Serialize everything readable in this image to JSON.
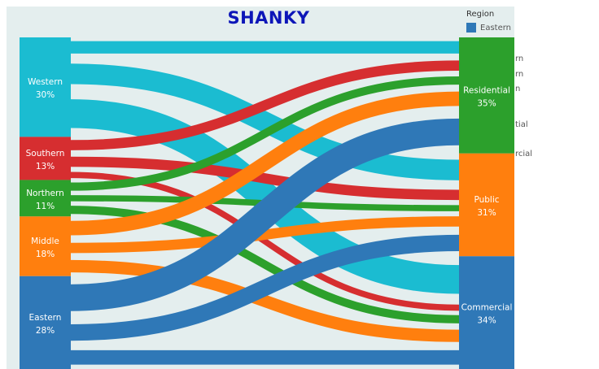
{
  "header": {
    "title": "SHANKY"
  },
  "legend": {
    "title": "Region",
    "items": [
      {
        "label": "Eastern",
        "color": "#2f78b7"
      }
    ]
  },
  "ghost_labels": [
    "rn",
    "rn",
    "n",
    "tial",
    "rcial"
  ],
  "chart_data": {
    "type": "sankey",
    "title": "SHANKY",
    "sources": [
      {
        "name": "Western",
        "label": "Western",
        "percent_label": "30%",
        "share": 30,
        "color": "#1bbcd1"
      },
      {
        "name": "Southern",
        "label": "Southern",
        "percent_label": "13%",
        "share": 13,
        "color": "#d62e30"
      },
      {
        "name": "Northern",
        "label": "Northern",
        "percent_label": "11%",
        "share": 11,
        "color": "#2ca02c"
      },
      {
        "name": "Middle",
        "label": "Middle",
        "percent_label": "18%",
        "share": 18,
        "color": "#ff7f0e"
      },
      {
        "name": "Eastern",
        "label": "Eastern",
        "percent_label": "28%",
        "share": 28,
        "color": "#2f78b7"
      }
    ],
    "targets": [
      {
        "name": "Residential",
        "label": "Residential",
        "percent_label": "35%",
        "share": 35,
        "color": "#2ca02c"
      },
      {
        "name": "Public",
        "label": "Public",
        "percent_label": "31%",
        "share": 31,
        "color": "#ff7f0e"
      },
      {
        "name": "Commercial",
        "label": "Commercial",
        "percent_label": "34%",
        "share": 34,
        "color": "#2f78b7"
      }
    ],
    "flows": [
      {
        "source": "Western",
        "target": "Residential",
        "value": 6
      },
      {
        "source": "Western",
        "target": "Public",
        "value": 10
      },
      {
        "source": "Western",
        "target": "Commercial",
        "value": 14
      },
      {
        "source": "Southern",
        "target": "Residential",
        "value": 5
      },
      {
        "source": "Southern",
        "target": "Public",
        "value": 5
      },
      {
        "source": "Southern",
        "target": "Commercial",
        "value": 3
      },
      {
        "source": "Northern",
        "target": "Residential",
        "value": 4
      },
      {
        "source": "Northern",
        "target": "Public",
        "value": 3
      },
      {
        "source": "Northern",
        "target": "Commercial",
        "value": 4
      },
      {
        "source": "Middle",
        "target": "Residential",
        "value": 7
      },
      {
        "source": "Middle",
        "target": "Public",
        "value": 5
      },
      {
        "source": "Middle",
        "target": "Commercial",
        "value": 6
      },
      {
        "source": "Eastern",
        "target": "Residential",
        "value": 13
      },
      {
        "source": "Eastern",
        "target": "Public",
        "value": 8
      },
      {
        "source": "Eastern",
        "target": "Commercial",
        "value": 7
      }
    ]
  }
}
